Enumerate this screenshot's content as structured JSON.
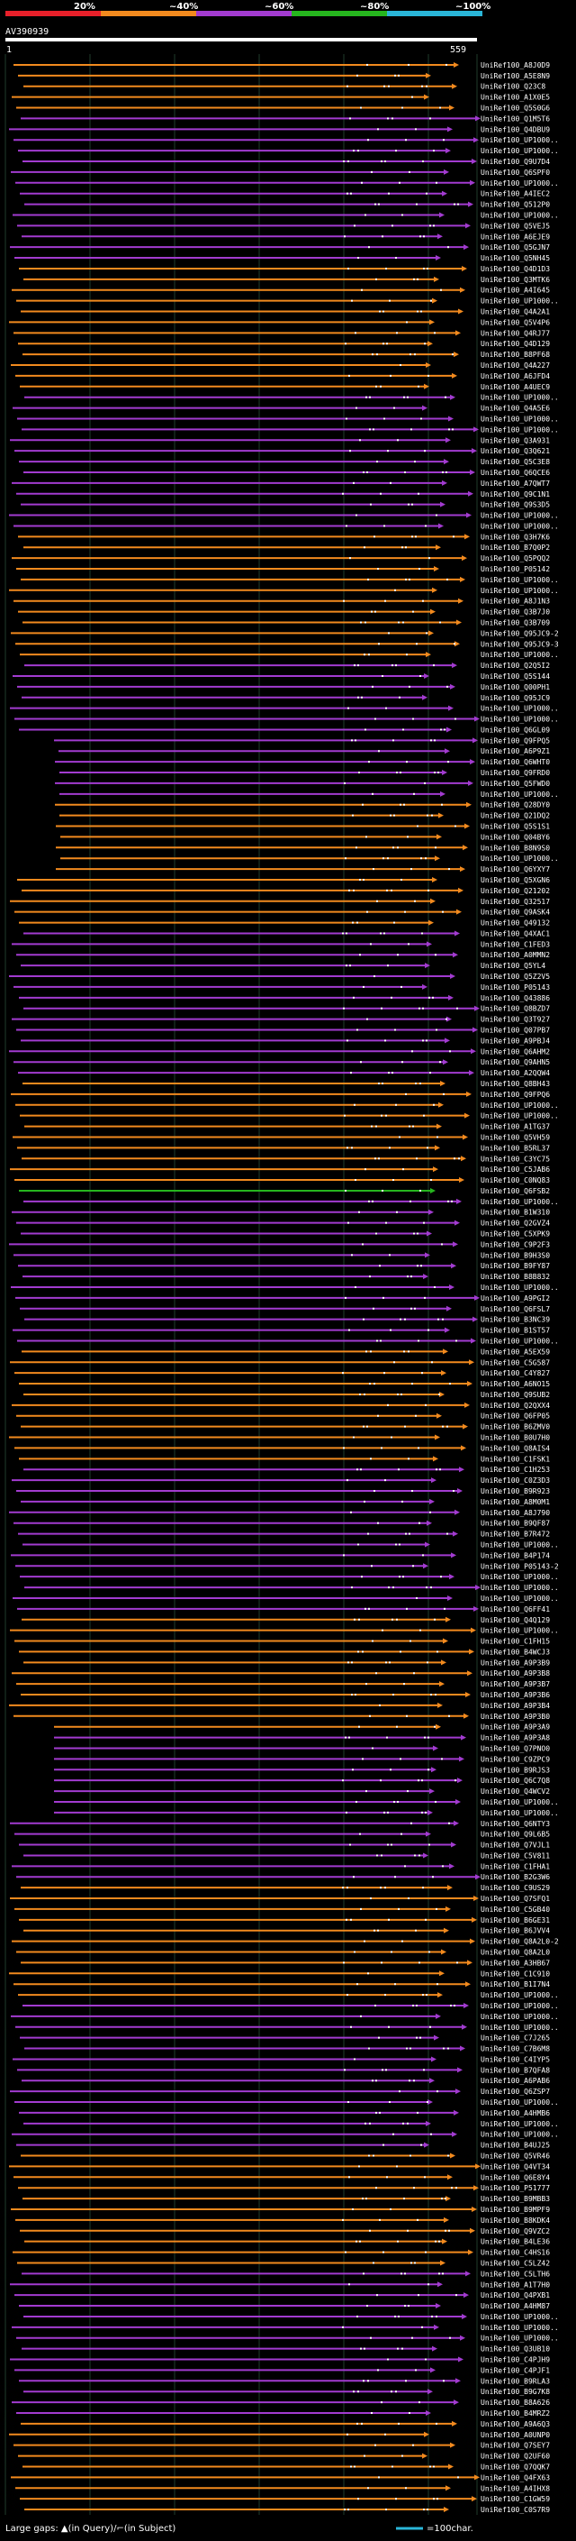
{
  "header": {
    "query_id": "AV390939",
    "scale_marks": [
      "20%",
      "~40%",
      "~60%",
      "~80%",
      "~100%"
    ],
    "scale_colors": [
      "#e8202a",
      "#f28a1e",
      "#a23bd0",
      "#26b61e",
      "#2ab6d8"
    ],
    "query_start": "1",
    "query_end": "559"
  },
  "legend": {
    "text": "Large gaps: ▲(in Query)/⌐(in Subject)",
    "scale_text": "=100char."
  },
  "hits": [
    "UniRef100_A8J0D9",
    "UniRef100_A5E8N9",
    "UniRef100_Q23C8",
    "UniRef100_A1X0E5",
    "UniRef100_Q5S0G6",
    "UniRef100_Q1M5T6",
    "UniRef100_Q4DBU9",
    "UniRef100_UP1000..",
    "UniRef100_UP1000..",
    "UniRef100_Q9U7D4",
    "UniRef100_Q6SPF0",
    "UniRef100_UP1000..",
    "UniRef100_A4IEC2",
    "UniRef100_Q512P0",
    "UniRef100_UP1000..",
    "UniRef100_Q5VEJ5",
    "UniRef100_A6EJE9",
    "UniRef100_Q5GJN7",
    "UniRef100_Q5NH45",
    "UniRef100_Q4D1D3",
    "UniRef100_Q3MTK6",
    "UniRef100_A4I645",
    "UniRef100_UP1000..",
    "UniRef100_Q4A2A1",
    "UniRef100_Q5V4P6",
    "UniRef100_Q4RJ77",
    "UniRef100_Q4D129",
    "UniRef100_B8PF68",
    "UniRef100_Q4A227",
    "UniRef100_A6JFD4",
    "UniRef100_A4UEC9",
    "UniRef100_UP1000..",
    "UniRef100_Q4A5E6",
    "UniRef100_UP1000..",
    "UniRef100_UP1000..",
    "UniRef100_Q3A931",
    "UniRef100_Q3Q621",
    "UniRef100_Q5C3E8",
    "UniRef100_Q6QCE6",
    "UniRef100_A7QWT7",
    "UniRef100_Q9C1N1",
    "UniRef100_Q9S3D5",
    "UniRef100_UP1000..",
    "UniRef100_UP1000..",
    "UniRef100_Q3H7K6",
    "UniRef100_B7Q0P2",
    "UniRef100_Q5PQQ2",
    "UniRef100_P05142",
    "UniRef100_UP1000..",
    "UniRef100_UP1000..",
    "UniRef100_A8J1N3",
    "UniRef100_Q3B7J0",
    "UniRef100_Q3B709",
    "UniRef100_Q95JC9-2",
    "UniRef100_Q95JC9-3",
    "UniRef100_UP1000..",
    "UniRef100_Q2Q5I2",
    "UniRef100_Q5S144",
    "UniRef100_Q00PH1",
    "UniRef100_Q95JC9",
    "UniRef100_UP1000..",
    "UniRef100_UP1000..",
    "UniRef100_Q6GL09",
    "UniRef100_Q9FPQ5",
    "UniRef100_A6P9Z1",
    "UniRef100_Q6WHT0",
    "UniRef100_Q9FRD0",
    "UniRef100_Q5FWD0",
    "UniRef100_UP1000..",
    "UniRef100_Q28DY0",
    "UniRef100_Q21DQ2",
    "UniRef100_Q5S1S1",
    "UniRef100_Q04BY6",
    "UniRef100_B8N9S0",
    "UniRef100_UP1000..",
    "UniRef100_Q6YXY7",
    "UniRef100_Q5XGN6",
    "UniRef100_Q21202",
    "UniRef100_Q32517",
    "UniRef100_Q9ASK4",
    "UniRef100_Q49132",
    "UniRef100_Q4XAC1",
    "UniRef100_C1FED3",
    "UniRef100_A0MMN2",
    "UniRef100_Q5YL4",
    "UniRef100_Q5Z2V5",
    "UniRef100_P05143",
    "UniRef100_Q43886",
    "UniRef100_Q8BZD7",
    "UniRef100_Q3T927",
    "UniRef100_Q07PB7",
    "UniRef100_A9PBJ4",
    "UniRef100_Q6AHM2",
    "UniRef100_Q9AHN5",
    "UniRef100_A2QQW4",
    "UniRef100_Q8BH43",
    "UniRef100_Q9FPQ6",
    "UniRef100_UP1000..",
    "UniRef100_UP1000..",
    "UniRef100_A1TG37",
    "UniRef100_Q5VH59",
    "UniRef100_B5RL37",
    "UniRef100_C3YC75",
    "UniRef100_C5JAB6",
    "UniRef100_C0NQ83",
    "UniRef100_Q6FSB2",
    "UniRef100_UP1000..",
    "UniRef100_B1W310",
    "UniRef100_Q2GVZ4",
    "UniRef100_C5XPK9",
    "UniRef100_C9P2F3",
    "UniRef100_B9H3S0",
    "UniRef100_B9FY87",
    "UniRef100_B8B832",
    "UniRef100_UP1000..",
    "UniRef100_A9PGI2",
    "UniRef100_Q6FSL7",
    "UniRef100_B3NC39",
    "UniRef100_B1ST57",
    "UniRef100_UP1000..",
    "UniRef100_A5EX59",
    "UniRef100_C5G587",
    "UniRef100_C4Y827",
    "UniRef100_A6NO15",
    "UniRef100_Q9SUB2",
    "UniRef100_Q2QXX4",
    "UniRef100_Q6FP05",
    "UniRef100_B6ZMV0",
    "UniRef100_B0U7H0",
    "UniRef100_Q8AIS4",
    "UniRef100_C1FSK1",
    "UniRef100_C1H253",
    "UniRef100_C0Z3D3",
    "UniRef100_B9R923",
    "UniRef100_A8M0M1",
    "UniRef100_A8J790",
    "UniRef100_B9QF87",
    "UniRef100_B7R472",
    "UniRef100_UP1000..",
    "UniRef100_B4P174",
    "UniRef100_P05143-2",
    "UniRef100_UP1000..",
    "UniRef100_UP1000..",
    "UniRef100_UP1000..",
    "UniRef100_Q6FF41",
    "UniRef100_Q4Q129",
    "UniRef100_UP1000..",
    "UniRef100_C1FH15",
    "UniRef100_B4WCJ3",
    "UniRef100_A9P3B9",
    "UniRef100_A9P3B8",
    "UniRef100_A9P3B7",
    "UniRef100_A9P3B6",
    "UniRef100_A9P3B4",
    "UniRef100_A9P3B0",
    "UniRef100_A9P3A9",
    "UniRef100_A9P3A8",
    "UniRef100_Q7PNO0",
    "UniRef100_C9ZPC9",
    "UniRef100_B9RJS3",
    "UniRef100_Q6C7Q8",
    "UniRef100_Q4WCV2",
    "UniRef100_UP1000..",
    "UniRef100_UP1000..",
    "UniRef100_Q6NTY3",
    "UniRef100_Q9L6B5",
    "UniRef100_Q7VJL1",
    "UniRef100_C5V811",
    "UniRef100_C1FHA1",
    "UniRef100_B2G3W6",
    "UniRef100_C9US29",
    "UniRef100_Q7SFQ1",
    "UniRef100_C5GB40",
    "UniRef100_B6GE31",
    "UniRef100_B6JVV4",
    "UniRef100_Q8A2L0-2",
    "UniRef100_Q8A2L0",
    "UniRef100_A3HB67",
    "UniRef100_C1C910",
    "UniRef100_B1I7N4",
    "UniRef100_UP1000..",
    "UniRef100_UP1000..",
    "UniRef100_UP1000..",
    "UniRef100_UP1000..",
    "UniRef100_C7J265",
    "UniRef100_C7B6M8",
    "UniRef100_C4IYP5",
    "UniRef100_B7QFA8",
    "UniRef100_A6PAB6",
    "UniRef100_Q6ZSP7",
    "UniRef100_UP1000..",
    "UniRef100_A4HMB6",
    "UniRef100_UP1000..",
    "UniRef100_UP1000..",
    "UniRef100_B4UJ25",
    "UniRef100_Q5VR46",
    "UniRef100_Q4VT34",
    "UniRef100_Q6E8Y4",
    "UniRef100_P51777",
    "UniRef100_B9MBB3",
    "UniRef100_B9MPF9",
    "UniRef100_B8KDK4",
    "UniRef100_Q9VZC2",
    "UniRef100_B4LE36",
    "UniRef100_C4HS16",
    "UniRef100_C5LZ42",
    "UniRef100_C5LTH6",
    "UniRef100_A1T7H0",
    "UniRef100_Q4PXB1",
    "UniRef100_A4HM87",
    "UniRef100_UP1000..",
    "UniRef100_UP1000..",
    "UniRef100_UP1000..",
    "UniRef100_Q3UB10",
    "UniRef100_C4PJH9",
    "UniRef100_C4PJF1",
    "UniRef100_B9RLA3",
    "UniRef100_B9G7K8",
    "UniRef100_B8A626",
    "UniRef100_B4MRZ2",
    "UniRef100_A9A6Q3",
    "UniRef100_A0UNP0",
    "UniRef100_Q7SEY7",
    "UniRef100_Q2UF60",
    "UniRef100_Q7QQK7",
    "UniRef100_Q4FX63",
    "UniRef100_A4IHX8",
    "UniRef100_C1GW59",
    "UniRef100_C0S7R9"
  ]
}
